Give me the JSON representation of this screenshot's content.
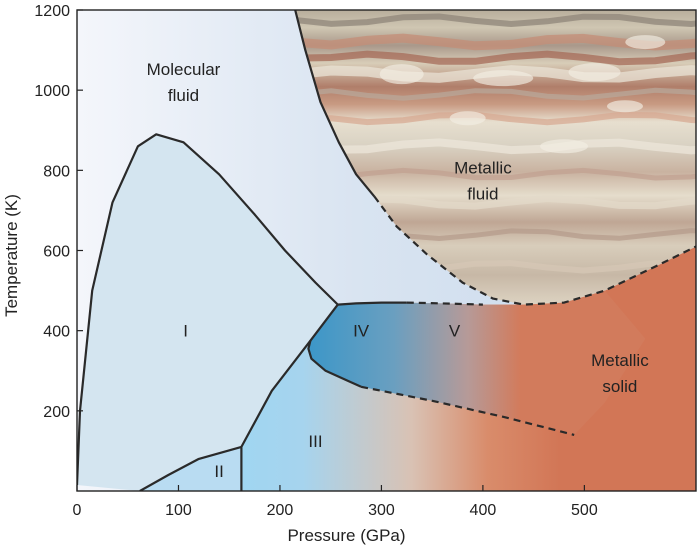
{
  "chart_data": {
    "type": "phase-diagram",
    "title": "",
    "xlabel": "Pressure (GPa)",
    "ylabel": "Temperature (K)",
    "xlim": [
      0,
      610
    ],
    "ylim": [
      0,
      1200
    ],
    "x_ticks": [
      0,
      100,
      200,
      300,
      400,
      500
    ],
    "y_ticks": [
      200,
      400,
      600,
      800,
      1000,
      1200
    ],
    "regions": [
      {
        "name": "Molecular fluid",
        "label": [
          "Molecular",
          "fluid"
        ],
        "x": 105,
        "y": 1020
      },
      {
        "name": "Metallic fluid",
        "label": [
          "Metallic",
          "fluid"
        ],
        "x": 400,
        "y": 775
      },
      {
        "name": "Phase I",
        "label": [
          "I"
        ],
        "x": 107,
        "y": 400
      },
      {
        "name": "Phase II",
        "label": [
          "II"
        ],
        "x": 140,
        "y": 50
      },
      {
        "name": "Phase III",
        "label": [
          "III"
        ],
        "x": 235,
        "y": 125
      },
      {
        "name": "Phase IV",
        "label": [
          "IV"
        ],
        "x": 280,
        "y": 400
      },
      {
        "name": "Phase V",
        "label": [
          "V"
        ],
        "x": 372,
        "y": 400
      },
      {
        "name": "Metallic solid",
        "label": [
          "Metallic",
          "solid"
        ],
        "x": 535,
        "y": 295
      }
    ],
    "boundaries": [
      {
        "name": "melting-line",
        "style": "solid",
        "points": [
          [
            0,
            15
          ],
          [
            3,
            200
          ],
          [
            15,
            500
          ],
          [
            35,
            720
          ],
          [
            60,
            860
          ],
          [
            78,
            890
          ],
          [
            105,
            870
          ],
          [
            140,
            790
          ],
          [
            175,
            690
          ],
          [
            205,
            600
          ],
          [
            235,
            520
          ],
          [
            257,
            465
          ]
        ]
      },
      {
        "name": "IV-fluid-boundary",
        "style": "solid",
        "points": [
          [
            257,
            465
          ],
          [
            275,
            468
          ],
          [
            300,
            470
          ],
          [
            325,
            470
          ]
        ]
      },
      {
        "name": "IV-fluid-boundary-extrapolated",
        "style": "dashed",
        "points": [
          [
            325,
            470
          ],
          [
            360,
            468
          ],
          [
            400,
            465
          ]
        ]
      },
      {
        "name": "molecular-metallic-fluid-boundary",
        "style": "solid",
        "points": [
          [
            215,
            1200
          ],
          [
            225,
            1100
          ],
          [
            240,
            970
          ],
          [
            258,
            870
          ],
          [
            275,
            790
          ],
          [
            293,
            735
          ]
        ]
      },
      {
        "name": "molecular-metallic-fluid-boundary-extrapolated",
        "style": "dashed",
        "points": [
          [
            293,
            735
          ],
          [
            315,
            660
          ],
          [
            345,
            590
          ],
          [
            380,
            520
          ],
          [
            410,
            480
          ],
          [
            440,
            465
          ],
          [
            480,
            470
          ],
          [
            520,
            500
          ],
          [
            570,
            560
          ],
          [
            610,
            610
          ]
        ]
      },
      {
        "name": "I-III-boundary",
        "style": "solid",
        "points": [
          [
            257,
            465
          ],
          [
            230,
            375
          ],
          [
            192,
            250
          ],
          [
            162,
            110
          ],
          [
            162,
            0
          ]
        ]
      },
      {
        "name": "I-II-boundary",
        "style": "solid",
        "points": [
          [
            62,
            0
          ],
          [
            90,
            40
          ],
          [
            120,
            80
          ],
          [
            162,
            110
          ]
        ]
      },
      {
        "name": "III-IV-boundary",
        "style": "solid",
        "points": [
          [
            230,
            375
          ],
          [
            228,
            355
          ],
          [
            231,
            330
          ],
          [
            245,
            300
          ],
          [
            280,
            260
          ]
        ]
      },
      {
        "name": "III-V-boundary-extrapolated",
        "style": "dashed",
        "points": [
          [
            280,
            260
          ],
          [
            350,
            225
          ],
          [
            420,
            185
          ],
          [
            490,
            140
          ]
        ]
      }
    ]
  }
}
